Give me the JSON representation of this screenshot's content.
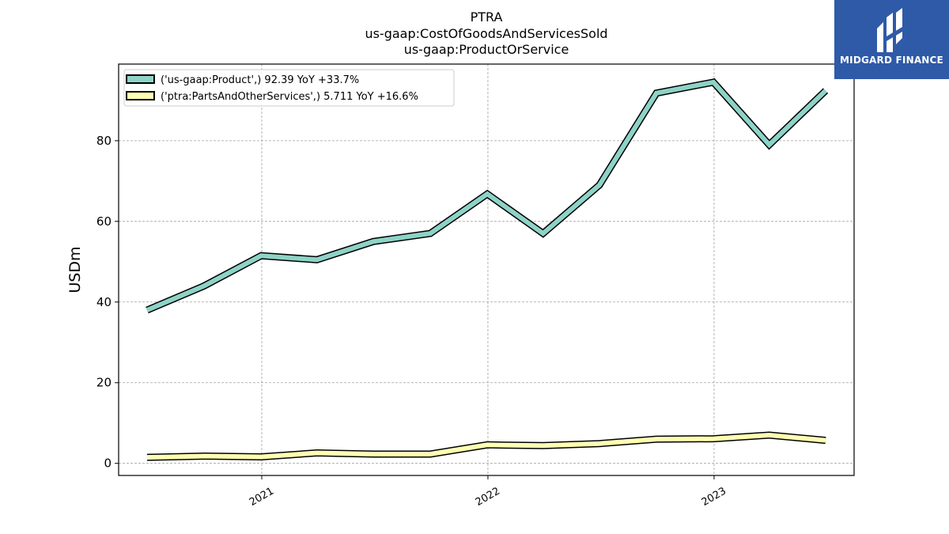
{
  "title_lines": [
    "PTRA",
    "us-gaap:CostOfGoodsAndServicesSold",
    "us-gaap:ProductOrService"
  ],
  "brand": {
    "name": "MIDGARD FINANCE",
    "color": "#2e5aa8"
  },
  "chart_data": {
    "type": "line",
    "ylabel": "USDm",
    "ylim": [
      -3,
      99
    ],
    "yticks": [
      0,
      20,
      40,
      60,
      80
    ],
    "x_dates": [
      "2020-06-30",
      "2020-09-30",
      "2020-12-31",
      "2021-03-31",
      "2021-06-30",
      "2021-09-30",
      "2021-12-31",
      "2022-03-31",
      "2022-06-30",
      "2022-09-30",
      "2022-12-31",
      "2023-03-31",
      "2023-06-30"
    ],
    "xlim": [
      "2020-05-15",
      "2023-08-15"
    ],
    "xticks": [
      {
        "date": "2021-01-01",
        "label": "2021"
      },
      {
        "date": "2022-01-01",
        "label": "2022"
      },
      {
        "date": "2023-01-01",
        "label": "2023"
      }
    ],
    "grid": true,
    "legend_position": "top-left",
    "series": [
      {
        "name": "('us-gaap:Product',) 92.39 YoY +33.7%",
        "color": "#8dd3c7",
        "values": [
          38,
          44,
          51.5,
          50.5,
          55,
          57,
          66.8,
          57,
          69,
          91.8,
          94.5,
          79,
          92.4
        ]
      },
      {
        "name": "('ptra:PartsAndOtherServices',) 5.711 YoY +16.6%",
        "color": "#ffffb3",
        "values": [
          1.5,
          1.8,
          1.6,
          2.6,
          2.3,
          2.3,
          4.6,
          4.4,
          4.9,
          6.0,
          6.1,
          7.0,
          5.7
        ]
      }
    ]
  }
}
